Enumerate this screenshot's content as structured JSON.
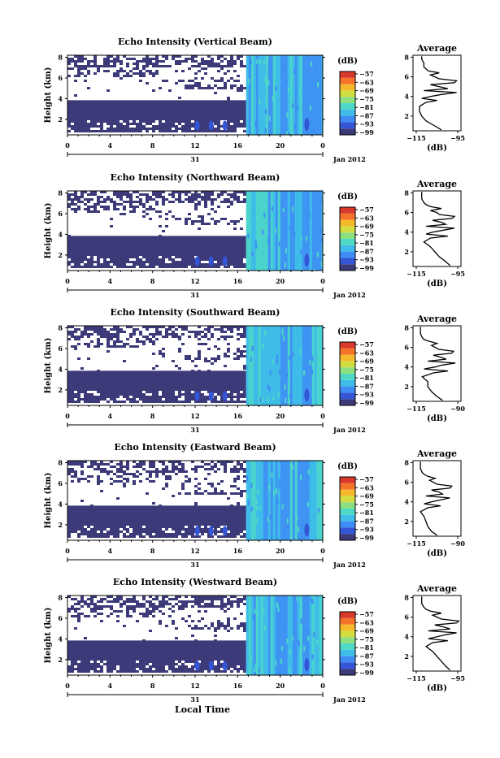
{
  "figure": {
    "x_axis_label": "Local Time",
    "day_label": "31",
    "date_label": "Jan 2012"
  },
  "colorbar": {
    "unit": "(dB)",
    "tick_labels": [
      "−57",
      "−63",
      "−69",
      "−75",
      "−81",
      "−87",
      "−93",
      "−99"
    ],
    "colors": [
      "#3c3a79",
      "#3355d6",
      "#3f8cf5",
      "#3fbde8",
      "#4ed8c7",
      "#8ce07f",
      "#d2dd41",
      "#f6b92c",
      "#f4722a",
      "#d9392a"
    ]
  },
  "chart_data": [
    {
      "type": "heatmap",
      "title": "Echo Intensity (Vertical Beam)",
      "ylabel": "Height (km)",
      "xlabel": "Local Time",
      "x_ticks": [
        "0",
        "4",
        "8",
        "12",
        "16",
        "20",
        "0"
      ],
      "y_ticks": [
        "2",
        "4",
        "6",
        "8"
      ],
      "xlim": [
        0,
        24
      ],
      "ylim": [
        0.5,
        8.2
      ],
      "no_data_rule": "white where no echo; dark (~-99 dB) below ~3.8 km before 16:45 LT; cyan (~-90 to -84 dB) after 16:45 LT",
      "average_profile": {
        "title": "Average",
        "xlabel": "(dB)",
        "x_tick_labels": [
          "−115",
          "−95"
        ],
        "xlim": [
          -116,
          -94
        ],
        "ylim": [
          0.5,
          8.2
        ],
        "height_km": [
          0.6,
          1.0,
          1.5,
          2.0,
          2.5,
          3.0,
          3.4,
          3.6,
          3.8,
          4.0,
          4.2,
          4.4,
          4.6,
          4.8,
          5.0,
          5.2,
          5.4,
          5.6,
          5.8,
          6.0,
          6.2,
          6.4,
          6.6,
          6.8,
          7.0,
          7.4,
          7.8,
          8.1
        ],
        "avg_db": [
          -103,
          -106,
          -110,
          -112,
          -113,
          -113,
          -110,
          -105,
          -112,
          -108,
          -103,
          -96,
          -111,
          -100,
          -104,
          -108,
          -97,
          -96,
          -104,
          -106,
          -108,
          -104,
          -109,
          -110,
          -111,
          -111,
          -112,
          -112
        ]
      }
    },
    {
      "type": "heatmap",
      "title": "Echo Intensity (Northward Beam)",
      "ylabel": "Height (km)",
      "xlabel": "Local Time",
      "x_ticks": [
        "0",
        "4",
        "8",
        "12",
        "16",
        "20",
        "0"
      ],
      "y_ticks": [
        "2",
        "4",
        "6",
        "8"
      ],
      "xlim": [
        0,
        24
      ],
      "ylim": [
        0.5,
        8.2
      ],
      "no_data_rule": "white where no echo; dark (~-99 dB) below ~3.8 km before 16:45 LT; cyan (~-90 to -84 dB) after 16:45 LT",
      "average_profile": {
        "title": "Average",
        "xlabel": "(dB)",
        "x_tick_labels": [
          "−115",
          "−95"
        ],
        "xlim": [
          -116,
          -94
        ],
        "ylim": [
          0.5,
          8.2
        ],
        "height_km": [
          0.6,
          1.0,
          1.5,
          2.0,
          2.5,
          3.0,
          3.4,
          3.6,
          3.8,
          4.0,
          4.2,
          4.4,
          4.6,
          4.8,
          5.0,
          5.2,
          5.4,
          5.6,
          5.8,
          6.0,
          6.2,
          6.4,
          6.6,
          6.8,
          7.0,
          7.4,
          7.8,
          8.1
        ],
        "avg_db": [
          -99,
          -101,
          -104,
          -106,
          -108,
          -111,
          -108,
          -100,
          -110,
          -107,
          -102,
          -97,
          -110,
          -101,
          -103,
          -107,
          -98,
          -97,
          -104,
          -105,
          -108,
          -103,
          -108,
          -110,
          -111,
          -112,
          -112,
          -112
        ]
      }
    },
    {
      "type": "heatmap",
      "title": "Echo Intensity (Southward Beam)",
      "ylabel": "Height (km)",
      "xlabel": "Local Time",
      "x_ticks": [
        "0",
        "4",
        "8",
        "12",
        "16",
        "20",
        "0"
      ],
      "y_ticks": [
        "2",
        "4",
        "6",
        "8"
      ],
      "xlim": [
        0,
        24
      ],
      "ylim": [
        0.5,
        8.2
      ],
      "no_data_rule": "white where no echo; dark (~-99 dB) below ~3.8 km before 16:45 LT; cyan (~-90 to -84 dB) after 16:45 LT",
      "average_profile": {
        "title": "Average",
        "xlabel": "(dB)",
        "x_tick_labels": [
          "−115",
          "−90"
        ],
        "xlim": [
          -116,
          -90
        ],
        "ylim": [
          0.5,
          8.2
        ],
        "height_km": [
          0.6,
          1.0,
          1.5,
          2.0,
          2.5,
          3.0,
          3.4,
          3.6,
          3.8,
          4.0,
          4.2,
          4.4,
          4.6,
          4.8,
          5.0,
          5.2,
          5.4,
          5.6,
          5.8,
          6.0,
          6.2,
          6.4,
          6.6,
          6.8,
          7.0,
          7.4,
          7.8,
          8.1
        ],
        "avg_db": [
          -100,
          -103,
          -106,
          -108,
          -108,
          -111,
          -105,
          -97,
          -110,
          -104,
          -100,
          -93,
          -108,
          -98,
          -101,
          -105,
          -95,
          -94,
          -102,
          -104,
          -106,
          -103,
          -107,
          -110,
          -111,
          -112,
          -112,
          -112
        ]
      }
    },
    {
      "type": "heatmap",
      "title": "Echo Intensity (Eastward Beam)",
      "ylabel": "Height (km)",
      "xlabel": "Local Time",
      "x_ticks": [
        "0",
        "4",
        "8",
        "12",
        "16",
        "20",
        "0"
      ],
      "y_ticks": [
        "2",
        "4",
        "6",
        "8"
      ],
      "xlim": [
        0,
        24
      ],
      "ylim": [
        0.5,
        8.2
      ],
      "no_data_rule": "white where no echo; dark (~-99 dB) below ~3.8 km before 16:45 LT; cyan (~-90 to -84 dB) after 16:45 LT",
      "average_profile": {
        "title": "Average",
        "xlabel": "(dB)",
        "x_tick_labels": [
          "−115",
          "−90"
        ],
        "xlim": [
          -116,
          -90
        ],
        "ylim": [
          0.5,
          8.2
        ],
        "height_km": [
          0.6,
          1.0,
          1.5,
          2.0,
          2.5,
          3.0,
          3.4,
          3.6,
          3.8,
          4.0,
          4.2,
          4.4,
          4.6,
          4.8,
          5.0,
          5.2,
          5.4,
          5.6,
          5.8,
          6.0,
          6.2,
          6.4,
          6.6,
          6.8,
          7.0,
          7.4,
          7.8,
          8.1
        ],
        "avg_db": [
          -103,
          -106,
          -108,
          -109,
          -110,
          -112,
          -108,
          -101,
          -110,
          -106,
          -101,
          -96,
          -109,
          -100,
          -102,
          -106,
          -96,
          -95,
          -103,
          -105,
          -107,
          -104,
          -108,
          -110,
          -111,
          -112,
          -112,
          -112
        ]
      }
    },
    {
      "type": "heatmap",
      "title": "Echo Intensity (Westward Beam)",
      "ylabel": "Height (km)",
      "xlabel": "Local Time",
      "x_ticks": [
        "0",
        "4",
        "8",
        "12",
        "16",
        "20",
        "0"
      ],
      "y_ticks": [
        "2",
        "4",
        "6",
        "8"
      ],
      "xlim": [
        0,
        24
      ],
      "ylim": [
        0.5,
        8.2
      ],
      "no_data_rule": "white where no echo; dark (~-99 dB) below ~3.8 km before 16:45 LT; cyan (~-90 to -84 dB) after 16:45 LT",
      "average_profile": {
        "title": "Average",
        "xlabel": "(dB)",
        "x_tick_labels": [
          "−115",
          "−95"
        ],
        "xlim": [
          -116,
          -94
        ],
        "ylim": [
          0.5,
          8.2
        ],
        "height_km": [
          0.6,
          1.0,
          1.5,
          2.0,
          2.5,
          3.0,
          3.4,
          3.6,
          3.8,
          4.0,
          4.2,
          4.4,
          4.6,
          4.8,
          5.0,
          5.2,
          5.4,
          5.6,
          5.8,
          6.0,
          6.2,
          6.4,
          6.6,
          6.8,
          7.0,
          7.4,
          7.8,
          8.1
        ],
        "avg_db": [
          -99,
          -101,
          -103,
          -105,
          -107,
          -110,
          -107,
          -100,
          -109,
          -105,
          -101,
          -96,
          -109,
          -99,
          -102,
          -106,
          -96,
          -95,
          -103,
          -105,
          -107,
          -103,
          -108,
          -110,
          -111,
          -112,
          -112,
          -112
        ]
      }
    }
  ]
}
